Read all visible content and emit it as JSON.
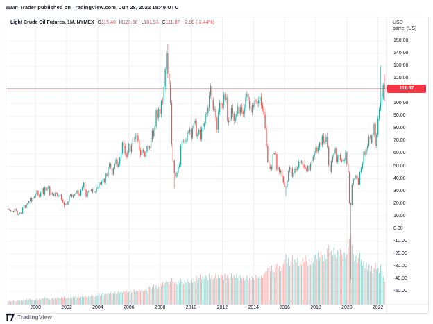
{
  "header": {
    "byline": "Wam-Trader published on TradingView.com, Jun 28, 2022 18:49 UTC"
  },
  "legend": {
    "symbol": "Light Crude Oil Futures, 1M, NYMEX",
    "ohlc": [
      {
        "label": "O",
        "value": "115.40"
      },
      {
        "label": "H",
        "value": "123.68"
      },
      {
        "label": "L",
        "value": "101.53"
      },
      {
        "label": "C",
        "value": "111.87"
      }
    ],
    "change": "-2.80 (-2.44%)"
  },
  "price_axis": {
    "unit_line1": "USD",
    "unit_line2": "barrel (US)",
    "ticks": [
      "150.00",
      "140.00",
      "130.00",
      "120.00",
      "110.00",
      "100.00",
      "90.00",
      "80.00",
      "70.00",
      "60.00",
      "50.00",
      "40.00",
      "30.00",
      "20.00",
      "10.00",
      "0.00",
      "-10.00",
      "-20.00",
      "-30.00",
      "-40.00",
      "-50.00"
    ],
    "last_price": "111.87",
    "last_price_value": 111.87,
    "badge_color": "#f23645"
  },
  "time_axis": {
    "years": [
      "2000",
      "2002",
      "2004",
      "2006",
      "2008",
      "2010",
      "2012",
      "2014",
      "2016",
      "2018",
      "2020",
      "2022"
    ]
  },
  "footer": {
    "brand": "TradingView"
  },
  "chart_data": {
    "type": "candlestick+volume",
    "title": "Light Crude Oil Futures, 1M, NYMEX",
    "timeframe": "1M monthly candles",
    "ylabel": "USD / barrel (US)",
    "ylim": [
      -50,
      150
    ],
    "grid": true,
    "up_color": "#26a69a",
    "down_color": "#ef5350",
    "volume_up_color": "rgba(38,166,154,0.4)",
    "volume_down_color": "rgba(239,83,80,0.4)",
    "current_price_line_color": "rgba(242,54,69,0.6)",
    "start_month": "1998-04",
    "first_open": 16.0,
    "closes": [
      15.4,
      15.0,
      14.2,
      14.2,
      13.3,
      16.0,
      14.4,
      11.2,
      12.0,
      12.8,
      12.3,
      16.8,
      18.7,
      16.8,
      19.3,
      20.5,
      22.1,
      24.5,
      21.8,
      24.6,
      25.6,
      27.6,
      30.4,
      26.9,
      25.7,
      29.0,
      32.5,
      27.4,
      33.1,
      30.8,
      32.7,
      34.0,
      26.8,
      28.7,
      27.4,
      26.3,
      28.5,
      28.4,
      26.3,
      26.4,
      27.2,
      23.4,
      21.2,
      19.4,
      19.8,
      19.5,
      21.7,
      26.3,
      27.3,
      25.3,
      26.9,
      27.0,
      28.4,
      30.5,
      27.2,
      26.9,
      31.2,
      33.5,
      36.6,
      31.0,
      25.8,
      29.6,
      30.2,
      30.5,
      31.6,
      29.2,
      29.1,
      29.4,
      32.5,
      33.1,
      36.2,
      35.8,
      37.4,
      39.9,
      37.1,
      43.8,
      42.1,
      49.6,
      51.8,
      49.1,
      43.5,
      48.2,
      51.8,
      55.4,
      49.7,
      51.8,
      56.5,
      60.6,
      68.9,
      66.2,
      59.8,
      57.3,
      61.0,
      67.9,
      61.4,
      66.6,
      71.9,
      71.3,
      73.9,
      74.4,
      70.3,
      62.9,
      58.7,
      63.1,
      61.1,
      58.1,
      61.8,
      65.9,
      65.7,
      64.0,
      70.7,
      78.2,
      74.0,
      81.7,
      94.5,
      88.7,
      96.0,
      91.7,
      101.8,
      101.6,
      113.5,
      127.4,
      140.0,
      124.1,
      115.5,
      100.6,
      67.8,
      54.4,
      44.6,
      41.7,
      44.8,
      49.7,
      51.1,
      66.3,
      69.9,
      69.5,
      69.9,
      70.6,
      77.0,
      77.3,
      79.4,
      72.9,
      79.7,
      83.8,
      86.2,
      74.0,
      75.6,
      78.9,
      72.0,
      80.0,
      81.4,
      84.1,
      91.4,
      92.2,
      96.9,
      106.7,
      113.9,
      102.7,
      95.4,
      95.7,
      88.8,
      79.2,
      93.2,
      100.4,
      98.8,
      98.5,
      107.1,
      103.0,
      104.9,
      86.5,
      85.0,
      88.1,
      96.5,
      92.2,
      86.2,
      88.9,
      91.8,
      97.5,
      92.1,
      97.2,
      93.5,
      91.9,
      96.6,
      105.0,
      107.7,
      102.3,
      96.4,
      92.7,
      98.4,
      97.5,
      102.6,
      101.6,
      100.0,
      102.7,
      105.4,
      98.2,
      95.9,
      91.2,
      80.5,
      66.2,
      53.3,
      48.2,
      49.8,
      47.6,
      59.6,
      60.3,
      59.5,
      47.1,
      49.2,
      45.1,
      46.6,
      41.7,
      37.0,
      33.6,
      33.7,
      38.3,
      45.9,
      49.1,
      48.3,
      41.6,
      44.7,
      48.2,
      46.9,
      49.4,
      53.7,
      52.8,
      54.0,
      50.6,
      49.3,
      48.3,
      46.0,
      50.2,
      47.1,
      51.7,
      54.4,
      57.4,
      60.4,
      64.7,
      61.6,
      64.9,
      68.6,
      67.0,
      74.2,
      68.8,
      69.8,
      73.3,
      65.3,
      50.9,
      45.4,
      53.8,
      57.2,
      60.1,
      63.9,
      53.5,
      58.5,
      58.6,
      55.1,
      54.1,
      54.2,
      55.2,
      61.1,
      51.6,
      44.8,
      20.5,
      18.8,
      35.5,
      39.3,
      40.3,
      42.6,
      40.2,
      35.8,
      45.3,
      48.5,
      52.2,
      61.5,
      59.2,
      63.6,
      66.3,
      73.5,
      73.9,
      68.5,
      75.0,
      83.6,
      66.2,
      75.2,
      88.2,
      95.7,
      100.3,
      104.7,
      114.7,
      111.87
    ],
    "volume_rel": [
      4,
      5,
      4,
      5,
      6,
      5,
      4,
      6,
      5,
      5,
      6,
      5,
      7,
      6,
      8,
      6,
      7,
      8,
      6,
      7,
      6,
      7,
      8,
      6,
      8,
      7,
      9,
      8,
      10,
      8,
      9,
      8,
      7,
      8,
      9,
      7,
      9,
      8,
      10,
      9,
      8,
      10,
      9,
      11,
      8,
      9,
      10,
      8,
      10,
      9,
      11,
      10,
      12,
      10,
      11,
      9,
      10,
      12,
      10,
      13,
      11,
      10,
      12,
      11,
      13,
      12,
      14,
      11,
      12,
      13,
      15,
      12,
      14,
      16,
      13,
      15,
      14,
      16,
      15,
      17,
      14,
      16,
      18,
      15,
      17,
      19,
      16,
      18,
      17,
      19,
      18,
      20,
      17,
      18,
      20,
      17,
      19,
      21,
      18,
      20,
      19,
      22,
      19,
      21,
      18,
      20,
      22,
      19,
      24,
      26,
      22,
      25,
      28,
      24,
      27,
      23,
      26,
      30,
      27,
      32,
      28,
      31,
      34,
      32,
      29,
      33,
      38,
      33,
      30,
      32,
      29,
      34,
      30,
      36,
      32,
      29,
      35,
      31,
      37,
      33,
      30,
      35,
      31,
      38,
      33,
      41,
      35,
      38,
      43,
      36,
      40,
      36,
      42,
      40,
      35,
      44,
      37,
      42,
      36,
      39,
      44,
      37,
      42,
      38,
      43,
      41,
      36,
      44,
      38,
      42,
      37,
      40,
      44,
      38,
      42,
      39,
      44,
      38,
      34,
      41,
      36,
      39,
      34,
      37,
      41,
      35,
      39,
      35,
      40,
      38,
      35,
      42,
      37,
      40,
      37,
      41,
      38,
      43,
      46,
      48,
      52,
      54,
      48,
      56,
      50,
      46,
      53,
      58,
      50,
      55,
      48,
      53,
      58,
      64,
      72,
      60,
      67,
      55,
      62,
      70,
      57,
      64,
      60,
      67,
      55,
      62,
      57,
      67,
      60,
      70,
      62,
      55,
      65,
      57,
      67,
      60,
      70,
      72,
      65,
      75,
      67,
      77,
      70,
      62,
      72,
      65,
      80,
      85,
      75,
      77,
      70,
      82,
      72,
      67,
      77,
      70,
      80,
      72,
      65,
      75,
      67,
      72,
      82,
      95,
      100,
      85,
      72,
      62,
      70,
      60,
      67,
      74,
      64,
      56,
      62,
      52,
      60,
      50,
      57,
      48,
      55,
      45,
      52,
      60,
      50,
      52,
      45,
      57,
      48,
      40,
      33
    ],
    "wick_overrides": {
      "1998-12": {
        "l": 10.35
      },
      "2001-11": {
        "l": 16.7
      },
      "2008-07": {
        "h": 147.27
      },
      "2008-12": {
        "l": 32.4
      },
      "2014-06": {
        "h": 107.73
      },
      "2016-02": {
        "l": 26.05
      },
      "2018-10": {
        "h": 76.9
      },
      "2020-04": {
        "l": -40.32
      },
      "2022-03": {
        "h": 130.5
      },
      "2022-06": {
        "o": 115.4,
        "h": 123.68,
        "l": 101.53,
        "c": 111.87
      }
    }
  }
}
